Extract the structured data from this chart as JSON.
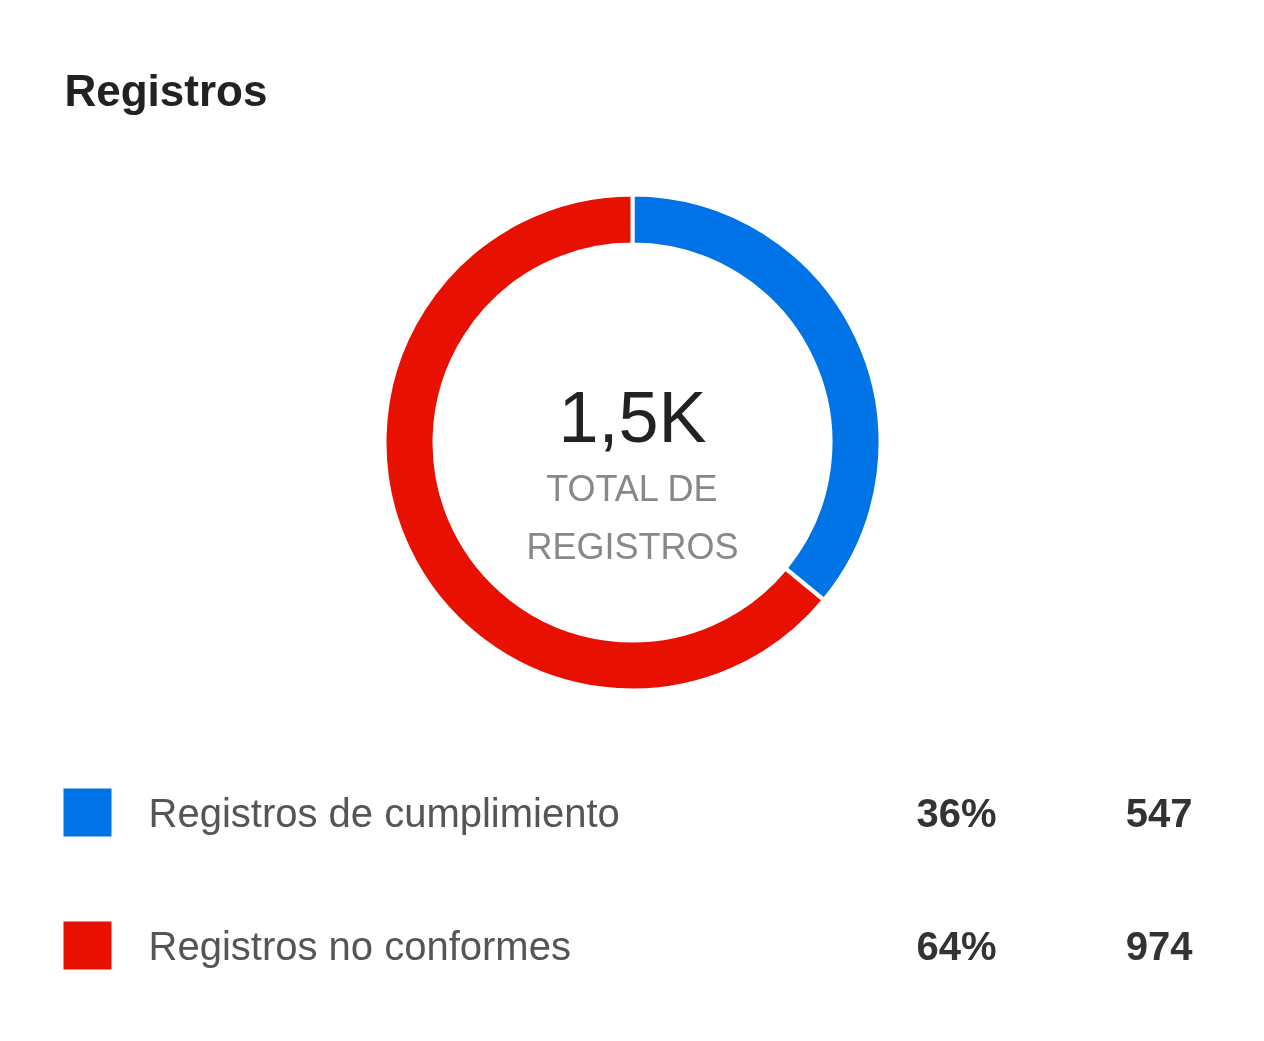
{
  "chart_data": {
    "type": "donut",
    "title": "Registros",
    "categories": [
      "Registros de cumplimiento",
      "Registros no conformes"
    ],
    "values": [
      547,
      974
    ],
    "colors": [
      "#0073e6",
      "#e81000"
    ],
    "value_labels": [
      "547",
      "974"
    ],
    "legend": "bottom",
    "annotations": [
      "1,5K",
      "TOTAL DE\nREGISTROS",
      "36%",
      "64%"
    ]
  }
}
